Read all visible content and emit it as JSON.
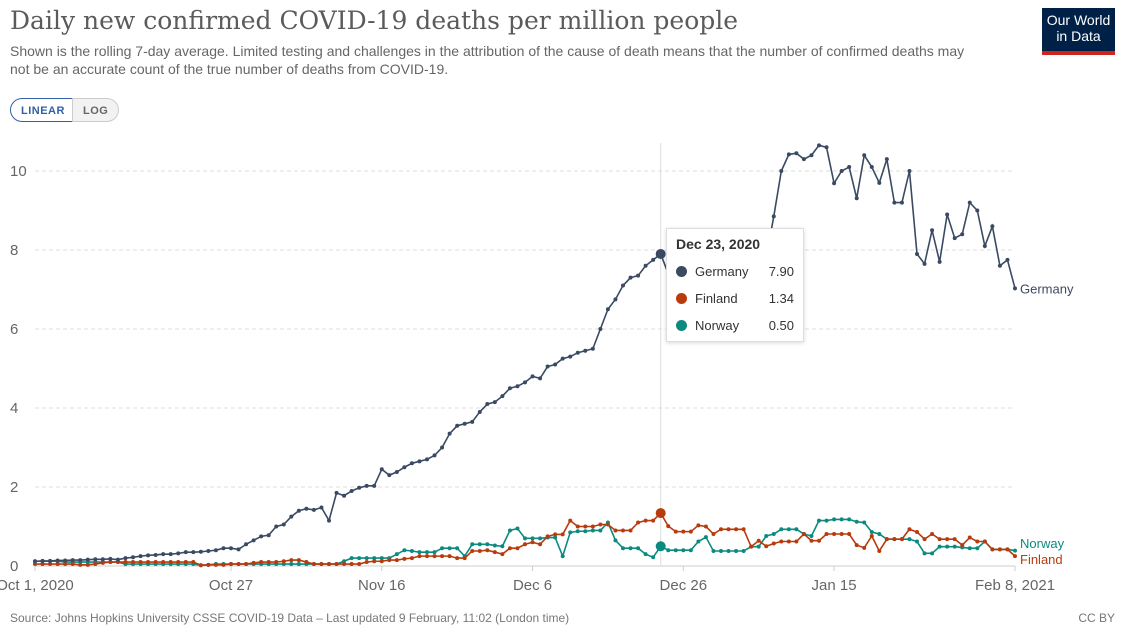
{
  "header": {
    "title": "Daily new confirmed COVID-19 deaths per million people",
    "subtitle": "Shown is the rolling 7-day average. Limited testing and challenges in the attribution of the cause of death means that the number of confirmed deaths may not be an accurate count of the true number of deaths from COVID-19.",
    "logo": "Our World in Data"
  },
  "controls": {
    "linear": "LINEAR",
    "log": "LOG",
    "selected": "LINEAR"
  },
  "tooltip": {
    "date": "Dec 23, 2020",
    "rows": [
      {
        "name": "Germany",
        "value": "7.90",
        "color": "#3a4a63"
      },
      {
        "name": "Finland",
        "value": "1.34",
        "color": "#b83b0e"
      },
      {
        "name": "Norway",
        "value": "0.50",
        "color": "#0b8a80"
      }
    ]
  },
  "footer": {
    "source": "Source: Johns Hopkins University CSSE COVID-19 Data – Last updated 9 February, 11:02 (London time)",
    "license": "CC BY"
  },
  "chart_data": {
    "type": "line",
    "x_start": "2020-10-01",
    "x_end": "2021-02-08",
    "x_step": "1 day",
    "ylim": [
      0,
      10.9
    ],
    "grid": "horizontal dashed",
    "yticks": [
      "0",
      "2",
      "4",
      "6",
      "8",
      "10"
    ],
    "xticks": [
      {
        "label": "Oct 1, 2020",
        "day": 0
      },
      {
        "label": "Oct 27",
        "day": 26
      },
      {
        "label": "Nov 16",
        "day": 46
      },
      {
        "label": "Dec 6",
        "day": 66
      },
      {
        "label": "Dec 26",
        "day": 86
      },
      {
        "label": "Jan 15",
        "day": 106
      },
      {
        "label": "Feb 8, 2021",
        "day": 130
      }
    ],
    "hover_day": 83,
    "series": [
      {
        "name": "Germany",
        "color": "#3a4a63",
        "values": [
          0.12,
          0.13,
          0.13,
          0.14,
          0.14,
          0.15,
          0.15,
          0.16,
          0.17,
          0.17,
          0.18,
          0.16,
          0.2,
          0.22,
          0.25,
          0.27,
          0.28,
          0.3,
          0.3,
          0.32,
          0.35,
          0.35,
          0.36,
          0.38,
          0.4,
          0.45,
          0.45,
          0.42,
          0.55,
          0.65,
          0.75,
          0.78,
          1.0,
          1.05,
          1.25,
          1.4,
          1.45,
          1.42,
          1.48,
          1.15,
          1.85,
          1.78,
          1.9,
          1.98,
          2.03,
          2.03,
          2.45,
          2.3,
          2.38,
          2.5,
          2.6,
          2.65,
          2.7,
          2.8,
          3.0,
          3.35,
          3.55,
          3.6,
          3.65,
          3.9,
          4.1,
          4.15,
          4.3,
          4.5,
          4.55,
          4.65,
          4.8,
          4.75,
          5.05,
          5.1,
          5.25,
          5.3,
          5.4,
          5.45,
          5.5,
          6.0,
          6.5,
          6.75,
          7.1,
          7.3,
          7.35,
          7.6,
          7.75,
          7.9,
          7.4,
          6.9,
          6.8,
          7.0,
          7.3,
          7.6,
          7.8,
          7.7,
          7.9,
          7.7,
          7.8,
          8.0,
          7.9,
          7.8,
          8.85,
          10.0,
          10.42,
          10.45,
          10.3,
          10.4,
          10.65,
          10.6,
          9.69,
          10.0,
          10.1,
          9.31,
          10.4,
          10.1,
          9.7,
          10.3,
          9.2,
          9.2,
          10.0,
          7.9,
          7.65,
          8.5,
          7.7,
          8.9,
          8.3,
          8.4,
          9.2,
          9.0,
          8.1,
          8.6,
          7.6,
          7.75,
          7.03
        ]
      },
      {
        "name": "Finland",
        "color": "#b83b0e",
        "values": [
          0.05,
          0.05,
          0.05,
          0.05,
          0.05,
          0.05,
          0.03,
          0.03,
          0.05,
          0.08,
          0.1,
          0.1,
          0.1,
          0.1,
          0.1,
          0.1,
          0.1,
          0.1,
          0.1,
          0.1,
          0.1,
          0.1,
          0.02,
          0.03,
          0.03,
          0.03,
          0.05,
          0.05,
          0.05,
          0.08,
          0.1,
          0.1,
          0.1,
          0.12,
          0.15,
          0.15,
          0.1,
          0.05,
          0.05,
          0.05,
          0.05,
          0.05,
          0.05,
          0.05,
          0.1,
          0.12,
          0.12,
          0.15,
          0.15,
          0.18,
          0.2,
          0.25,
          0.25,
          0.25,
          0.25,
          0.25,
          0.2,
          0.2,
          0.38,
          0.38,
          0.4,
          0.35,
          0.3,
          0.45,
          0.45,
          0.55,
          0.6,
          0.55,
          0.75,
          0.8,
          0.8,
          1.15,
          1.0,
          1.0,
          1.0,
          1.05,
          1.05,
          0.9,
          0.9,
          0.9,
          1.1,
          1.15,
          1.15,
          1.34,
          1.01,
          0.87,
          0.87,
          0.87,
          1.03,
          1.0,
          0.81,
          0.93,
          0.93,
          0.93,
          0.93,
          0.49,
          0.64,
          0.5,
          0.57,
          0.62,
          0.62,
          0.62,
          0.81,
          0.64,
          0.64,
          0.81,
          0.81,
          0.81,
          0.81,
          0.53,
          0.46,
          0.76,
          0.38,
          0.68,
          0.68,
          0.68,
          0.93,
          0.86,
          0.68,
          0.81,
          0.68,
          0.68,
          0.68,
          0.53,
          0.72,
          0.62,
          0.62,
          0.42,
          0.42,
          0.42,
          0.25
        ]
      },
      {
        "name": "Norway",
        "color": "#0b8a80",
        "values": [
          0.12,
          0.12,
          0.12,
          0.12,
          0.1,
          0.1,
          0.1,
          0.1,
          0.1,
          0.1,
          0.1,
          0.1,
          0.05,
          0.05,
          0.05,
          0.05,
          0.05,
          0.05,
          0.05,
          0.05,
          0.05,
          0.05,
          0.02,
          0.03,
          0.05,
          0.05,
          0.05,
          0.05,
          0.05,
          0.05,
          0.05,
          0.05,
          0.05,
          0.05,
          0.05,
          0.05,
          0.05,
          0.05,
          0.05,
          0.05,
          0.05,
          0.12,
          0.2,
          0.2,
          0.2,
          0.2,
          0.2,
          0.2,
          0.3,
          0.4,
          0.38,
          0.35,
          0.35,
          0.35,
          0.45,
          0.45,
          0.45,
          0.25,
          0.55,
          0.55,
          0.55,
          0.52,
          0.5,
          0.9,
          0.95,
          0.7,
          0.7,
          0.7,
          0.72,
          0.72,
          0.25,
          0.85,
          0.88,
          0.88,
          0.9,
          0.9,
          1.1,
          0.65,
          0.45,
          0.45,
          0.45,
          0.3,
          0.22,
          0.5,
          0.4,
          0.4,
          0.4,
          0.4,
          0.62,
          0.73,
          0.38,
          0.38,
          0.38,
          0.38,
          0.38,
          0.49,
          0.49,
          0.76,
          0.81,
          0.93,
          0.93,
          0.93,
          0.81,
          0.76,
          1.15,
          1.15,
          1.18,
          1.18,
          1.18,
          1.12,
          1.1,
          0.86,
          0.81,
          0.68,
          0.68,
          0.68,
          0.68,
          0.62,
          0.32,
          0.32,
          0.49,
          0.49,
          0.49,
          0.47,
          0.45,
          0.45,
          0.62,
          0.42,
          0.42,
          0.42,
          0.39
        ]
      }
    ]
  }
}
